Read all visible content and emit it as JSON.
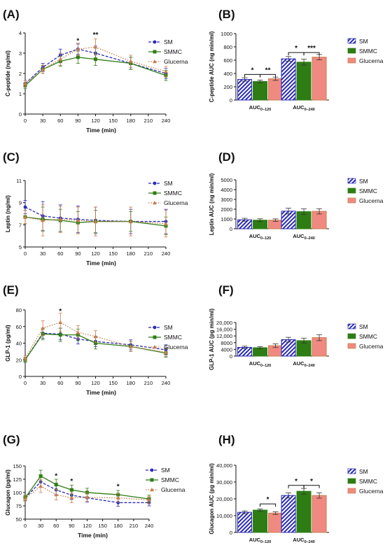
{
  "colors": {
    "sm": "#2b2bb8",
    "smmc": "#2e7d14",
    "glucerna": "#c87d4e",
    "glucerna_bar": "#f08a80"
  },
  "legend": {
    "sm": "SM",
    "smmc": "SMMC",
    "glucerna": "Glucerna"
  },
  "chart_data": [
    {
      "panel": "(A)",
      "type": "line",
      "xlabel": "Time (min)",
      "ylabel": "C-peptide (ng/ml)",
      "x": [
        0,
        30,
        60,
        90,
        120,
        180,
        240
      ],
      "xticks": [
        0,
        30,
        60,
        90,
        120,
        150,
        180,
        210,
        240
      ],
      "xlim": [
        0,
        240
      ],
      "ylim": [
        0,
        4
      ],
      "yticks": [
        0,
        1,
        2,
        3,
        4
      ],
      "series": [
        {
          "name": "SM",
          "values": [
            1.5,
            2.3,
            2.9,
            3.2,
            3.0,
            2.5,
            2.0
          ],
          "err": [
            0.15,
            0.2,
            0.3,
            0.25,
            0.35,
            0.3,
            0.25
          ]
        },
        {
          "name": "SMMC",
          "values": [
            1.4,
            2.2,
            2.6,
            2.8,
            2.7,
            2.5,
            1.9
          ],
          "err": [
            0.15,
            0.2,
            0.25,
            0.3,
            0.3,
            0.3,
            0.25
          ]
        },
        {
          "name": "Glucerna",
          "values": [
            1.5,
            2.2,
            2.7,
            3.2,
            3.3,
            2.6,
            2.1
          ],
          "err": [
            0.15,
            0.2,
            0.3,
            0.3,
            0.4,
            0.3,
            0.25
          ]
        }
      ],
      "annotations": [
        {
          "x": 90,
          "y": 3.5,
          "text": "*"
        },
        {
          "x": 120,
          "y": 3.8,
          "text": "**"
        }
      ]
    },
    {
      "panel": "(B)",
      "type": "bar",
      "ylabel": "C-peptide AUC (ng min/ml)",
      "categories": [
        "AUC0–120",
        "AUC0–240"
      ],
      "category_main": "AUC",
      "category_sub": [
        "0–120",
        "0–240"
      ],
      "ylim": [
        0,
        1000
      ],
      "yticks": [
        0,
        200,
        400,
        600,
        800,
        1000
      ],
      "ytick_labels": [
        "0",
        "200",
        "400",
        "600",
        "800",
        "1000"
      ],
      "series": [
        {
          "name": "SM",
          "values": [
            310,
            620
          ],
          "err": [
            25,
            35
          ]
        },
        {
          "name": "SMMC",
          "values": [
            280,
            570
          ],
          "err": [
            20,
            45
          ]
        },
        {
          "name": "Glucerna",
          "values": [
            320,
            645
          ],
          "err": [
            25,
            40
          ]
        }
      ],
      "brackets": [
        {
          "c": 0,
          "a": 0,
          "b": 1,
          "y": 385,
          "text": "*"
        },
        {
          "c": 0,
          "a": 1,
          "b": 2,
          "y": 385,
          "text": "**"
        },
        {
          "c": 1,
          "a": 0,
          "b": 1,
          "y": 715,
          "text": "*"
        },
        {
          "c": 1,
          "a": 1,
          "b": 2,
          "y": 715,
          "text": "***"
        }
      ]
    },
    {
      "panel": "(C)",
      "type": "line",
      "xlabel": "Time (min)",
      "ylabel": "Leptin (ng/ml)",
      "x": [
        0,
        30,
        60,
        90,
        120,
        180,
        240
      ],
      "xticks": [
        0,
        30,
        60,
        90,
        120,
        150,
        180,
        210,
        240
      ],
      "xlim": [
        0,
        240
      ],
      "ylim": [
        5,
        11
      ],
      "yticks": [
        5,
        7,
        9,
        11
      ],
      "series": [
        {
          "name": "SM",
          "values": [
            8.6,
            7.8,
            7.6,
            7.5,
            7.4,
            7.3,
            7.3
          ],
          "err": [
            0.6,
            1.3,
            1.2,
            1.2,
            1.2,
            1.1,
            1.1
          ]
        },
        {
          "name": "SMMC",
          "values": [
            7.7,
            7.5,
            7.4,
            7.2,
            7.3,
            7.3,
            6.9
          ],
          "err": [
            0.6,
            1.1,
            1.0,
            1.0,
            1.0,
            0.9,
            0.8
          ]
        },
        {
          "name": "Glucerna",
          "values": [
            7.7,
            7.4,
            7.5,
            7.4,
            7.3,
            7.3,
            7.1
          ],
          "err": [
            0.6,
            1.4,
            1.2,
            1.2,
            1.3,
            1.3,
            1.2
          ]
        }
      ],
      "annotations": []
    },
    {
      "panel": "(D)",
      "type": "bar",
      "ylabel": "Leptin AUC (ng min/ml)",
      "categories": [
        "AUC0–120",
        "AUC0–240"
      ],
      "category_main": "AUC",
      "category_sub": [
        "0–120",
        "0–240"
      ],
      "ylim": [
        0,
        5000
      ],
      "yticks": [
        0,
        1000,
        2000,
        3000,
        4000,
        5000
      ],
      "ytick_labels": [
        "0",
        "1000",
        "2000",
        "3000",
        "4000",
        "5000"
      ],
      "series": [
        {
          "name": "SM",
          "values": [
            920,
            1800
          ],
          "err": [
            150,
            300
          ]
        },
        {
          "name": "SMMC",
          "values": [
            880,
            1750
          ],
          "err": [
            140,
            280
          ]
        },
        {
          "name": "Glucerna",
          "values": [
            880,
            1780
          ],
          "err": [
            130,
            270
          ]
        }
      ],
      "brackets": []
    },
    {
      "panel": "(E)",
      "type": "line",
      "xlabel": "Time (min)",
      "ylabel": "GLP-1 (pg/ml)",
      "x": [
        0,
        30,
        60,
        90,
        120,
        180,
        240
      ],
      "xticks": [
        0,
        30,
        60,
        90,
        120,
        150,
        180,
        210,
        240
      ],
      "xlim": [
        0,
        240
      ],
      "ylim": [
        0,
        80
      ],
      "yticks": [
        0,
        20,
        40,
        60,
        80
      ],
      "series": [
        {
          "name": "SM",
          "values": [
            20,
            52,
            51,
            45,
            42,
            38,
            32
          ],
          "err": [
            3,
            6,
            7,
            6,
            6,
            6,
            6
          ]
        },
        {
          "name": "SMMC",
          "values": [
            20,
            51,
            50,
            50,
            40,
            36,
            28
          ],
          "err": [
            3,
            7,
            8,
            7,
            7,
            6,
            5
          ]
        },
        {
          "name": "Glucerna",
          "values": [
            22,
            58,
            65,
            53,
            48,
            36,
            29
          ],
          "err": [
            3,
            9,
            11,
            8,
            7,
            6,
            5
          ]
        }
      ],
      "annotations": [
        {
          "x": 60,
          "y": 76,
          "text": "*"
        }
      ]
    },
    {
      "panel": "(F)",
      "type": "bar",
      "ylabel": "GLP-1 AUC (pg min/ml)",
      "categories": [
        "AUC0–120",
        "AUC0–240"
      ],
      "category_main": "AUC",
      "category_sub": [
        "0–120",
        "0–240"
      ],
      "ylim": [
        0,
        20000
      ],
      "yticks": [
        0,
        4000,
        8000,
        12000,
        16000,
        20000
      ],
      "ytick_labels": [
        "0",
        "4000",
        "8000",
        "12,000",
        "16,000",
        "20,000"
      ],
      "series": [
        {
          "name": "SM",
          "values": [
            5200,
            9800
          ],
          "err": [
            700,
            1400
          ]
        },
        {
          "name": "SMMC",
          "values": [
            5000,
            9200
          ],
          "err": [
            700,
            1500
          ]
        },
        {
          "name": "Glucerna",
          "values": [
            6200,
            11000
          ],
          "err": [
            1100,
            1800
          ]
        }
      ],
      "brackets": []
    },
    {
      "panel": "(G)",
      "type": "line",
      "xlabel": "Time (min)",
      "ylabel": "Glucagon (pg/ml)",
      "x": [
        0,
        30,
        60,
        90,
        120,
        180,
        240
      ],
      "xticks": [
        0,
        30,
        60,
        90,
        120,
        150,
        180,
        210,
        240
      ],
      "xlim": [
        0,
        240
      ],
      "ylim": [
        50,
        150
      ],
      "yticks": [
        50,
        75,
        100,
        125,
        150
      ],
      "series": [
        {
          "name": "SM",
          "values": [
            90,
            120,
            105,
            95,
            90,
            81,
            81
          ],
          "err": [
            5,
            10,
            9,
            8,
            8,
            7,
            6
          ]
        },
        {
          "name": "SMMC",
          "values": [
            90,
            131,
            115,
            105,
            100,
            96,
            88
          ],
          "err": [
            5,
            11,
            10,
            9,
            8,
            8,
            7
          ]
        },
        {
          "name": "Glucerna",
          "values": [
            89,
            112,
            96,
            90,
            91,
            90,
            86
          ],
          "err": [
            5,
            12,
            10,
            9,
            8,
            8,
            7
          ]
        }
      ],
      "annotations": [
        {
          "x": 60,
          "y": 127,
          "text": "*"
        },
        {
          "x": 90,
          "y": 117,
          "text": "*"
        },
        {
          "x": 180,
          "y": 107,
          "text": "*"
        }
      ]
    },
    {
      "panel": "(H)",
      "type": "bar",
      "ylabel": "Glucagon AUC (pg min/ml)",
      "categories": [
        "AUC0–120",
        "AUC0–240"
      ],
      "category_main": "AUC",
      "category_sub": [
        "0–120",
        "0–240"
      ],
      "ylim": [
        0,
        40000
      ],
      "yticks": [
        0,
        10000,
        20000,
        30000,
        40000
      ],
      "ytick_labels": [
        "0",
        "10,000",
        "20,000",
        "30,000",
        "40,000"
      ],
      "series": [
        {
          "name": "SM",
          "values": [
            12000,
            22000
          ],
          "err": [
            800,
            1500
          ]
        },
        {
          "name": "SMMC",
          "values": [
            13300,
            24500
          ],
          "err": [
            700,
            1700
          ]
        },
        {
          "name": "Glucerna",
          "values": [
            11500,
            22000
          ],
          "err": [
            800,
            1600
          ]
        }
      ],
      "brackets": [
        {
          "c": 0,
          "a": 1,
          "b": 2,
          "y": 17000,
          "text": "*"
        },
        {
          "c": 1,
          "a": 0,
          "b": 1,
          "y": 28000,
          "text": "*"
        },
        {
          "c": 1,
          "a": 1,
          "b": 2,
          "y": 28000,
          "text": "*"
        }
      ]
    }
  ]
}
